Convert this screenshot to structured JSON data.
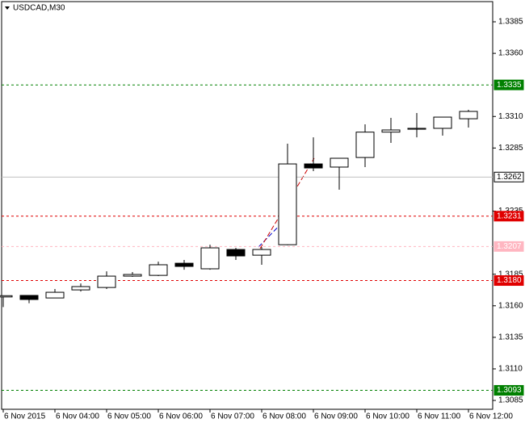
{
  "chart_data": {
    "type": "candlestick",
    "title": "USDCAD,M30",
    "categories": [
      "6 Nov 2015",
      null,
      "6 Nov 04:00",
      null,
      "6 Nov 05:00",
      null,
      "6 Nov 06:00",
      null,
      "6 Nov 07:00",
      null,
      "6 Nov 08:00",
      null,
      "6 Nov 09:00",
      null,
      "6 Nov 10:00",
      null,
      "6 Nov 11:00",
      null,
      "6 Nov 12:00"
    ],
    "open": [
      1.3167,
      1.31682,
      1.31662,
      1.31726,
      1.31745,
      1.31835,
      1.31841,
      1.31937,
      1.31893,
      1.32046,
      1.32001,
      1.32084,
      1.32724,
      1.32699,
      1.32775,
      1.32976,
      1.32999,
      1.33006,
      1.33082
    ],
    "high": [
      1.3168,
      1.31682,
      1.31733,
      1.31777,
      1.31873,
      1.31867,
      1.3195,
      1.31963,
      1.32084,
      1.32059,
      1.32065,
      1.32884,
      1.32935,
      1.32769,
      1.33038,
      1.33089,
      1.33127,
      1.33095,
      1.33153
    ],
    "low": [
      1.3159,
      1.3162,
      1.3166,
      1.31713,
      1.31733,
      1.31829,
      1.31835,
      1.31886,
      1.31886,
      1.31963,
      1.31925,
      1.3208,
      1.32667,
      1.3252,
      1.32699,
      1.32891,
      1.32935,
      1.32948,
      1.33012
    ],
    "close": [
      1.3168,
      1.3165,
      1.31707,
      1.31752,
      1.31835,
      1.31848,
      1.31925,
      1.31912,
      1.32059,
      1.31995,
      1.32046,
      1.32724,
      1.32692,
      1.32769,
      1.32976,
      1.32993,
      1.33006,
      1.33095,
      1.3314
    ],
    "up_color": "#ffffff",
    "down_color": "#000000",
    "outline_color": "#000000",
    "ylim": [
      1.3078,
      1.3401
    ],
    "yticks": [
      1.3385,
      {
        "value": 1.336,
        "label": "1.3360"
      },
      {
        "value": 1.331,
        "label": "1.3310"
      },
      1.3285,
      1.3235,
      1.3185,
      {
        "value": 1.316,
        "label": "1.3160"
      },
      1.3135,
      {
        "value": 1.311,
        "label": "1.3110"
      },
      1.3085
    ],
    "levels": [
      {
        "price": 1.3335,
        "color": "#008000",
        "dashed": true
      },
      {
        "price": 1.3262,
        "color": "#c0c0c0",
        "dashed": false
      },
      {
        "price": 1.3231,
        "color": "#e00000",
        "dashed": true
      },
      {
        "price": 1.3207,
        "color": "#ffb6c1",
        "dashed": true
      },
      {
        "price": {
          "value": 1.318,
          "label": "1.3180"
        },
        "color": "#e00000",
        "dashed": true
      },
      {
        "price": 1.3093,
        "color": "#008000",
        "dashed": true
      }
    ]
  }
}
